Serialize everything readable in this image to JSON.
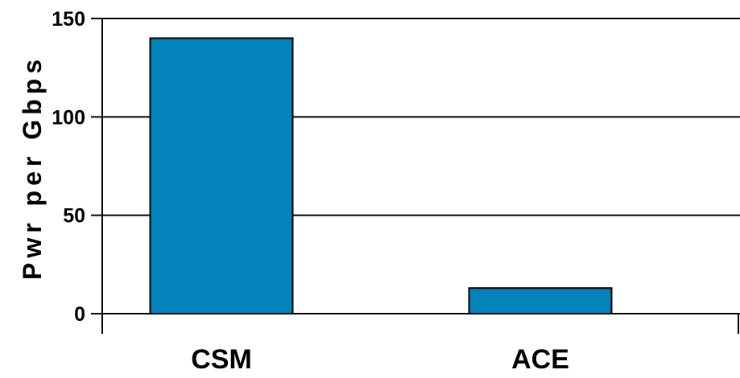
{
  "chart_data": {
    "type": "bar",
    "categories": [
      "CSM",
      "ACE"
    ],
    "values": [
      140,
      13
    ],
    "title": "",
    "xlabel": "",
    "ylabel": "Pwr per Gbps",
    "ylim": [
      0,
      150
    ],
    "yticks": [
      0,
      50,
      100,
      150
    ],
    "ytick_labels": [
      "0",
      "50",
      "100",
      "150"
    ],
    "grid": true,
    "legend": "none",
    "bar_color": "#0284BB"
  }
}
